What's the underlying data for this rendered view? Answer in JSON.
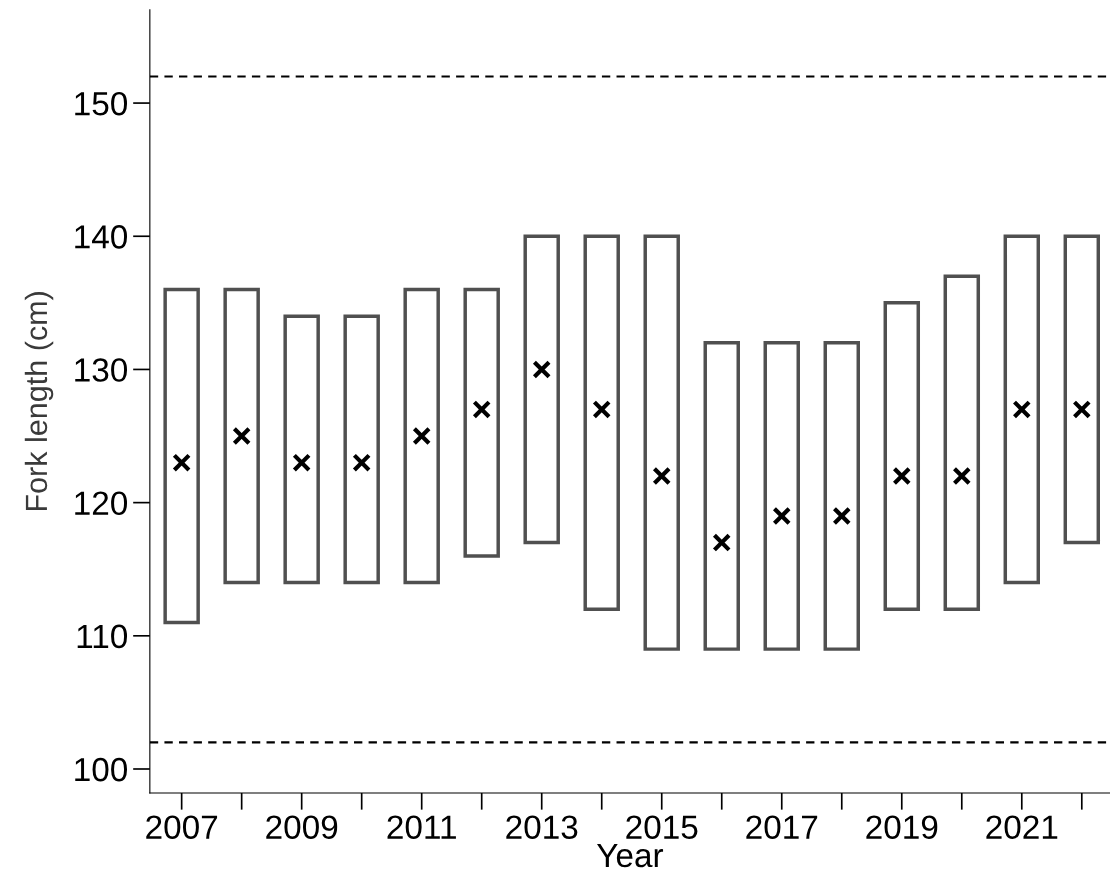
{
  "chart_data": {
    "type": "bar",
    "xlabel": "Year",
    "ylabel": "Fork length (cm)",
    "categories": [
      "2007",
      null,
      "2009",
      null,
      "2011",
      null,
      "2013",
      null,
      "2015",
      null,
      "2017",
      null,
      "2019",
      null,
      "2021",
      null
    ],
    "series": [
      {
        "color": "#505050",
        "base": [
          111,
          114,
          114,
          114,
          114,
          116,
          117,
          112,
          109,
          109,
          109,
          109,
          112,
          112,
          114,
          117
        ],
        "values": [
          25,
          22,
          20,
          20,
          22,
          20,
          23,
          28,
          31,
          23,
          23,
          23,
          23,
          25,
          26,
          23
        ]
      },
      {
        "type": "scatter",
        "color": "#000000",
        "marker": "cross",
        "values": [
          123,
          125,
          123,
          123,
          125,
          127,
          130,
          127,
          122,
          117,
          119,
          119,
          122,
          122,
          127,
          127
        ]
      }
    ],
    "ylim": [
      98.2,
      157
    ],
    "yticks": [
      100,
      110,
      120,
      130,
      140,
      150
    ],
    "ref_lines": [
      {
        "axis": "y",
        "value": 152,
        "color": "#000000",
        "line_style": "dashed"
      },
      {
        "axis": "y",
        "value": 102,
        "color": "#000000",
        "line_style": "dashed"
      }
    ],
    "grid": false,
    "legend": false
  }
}
